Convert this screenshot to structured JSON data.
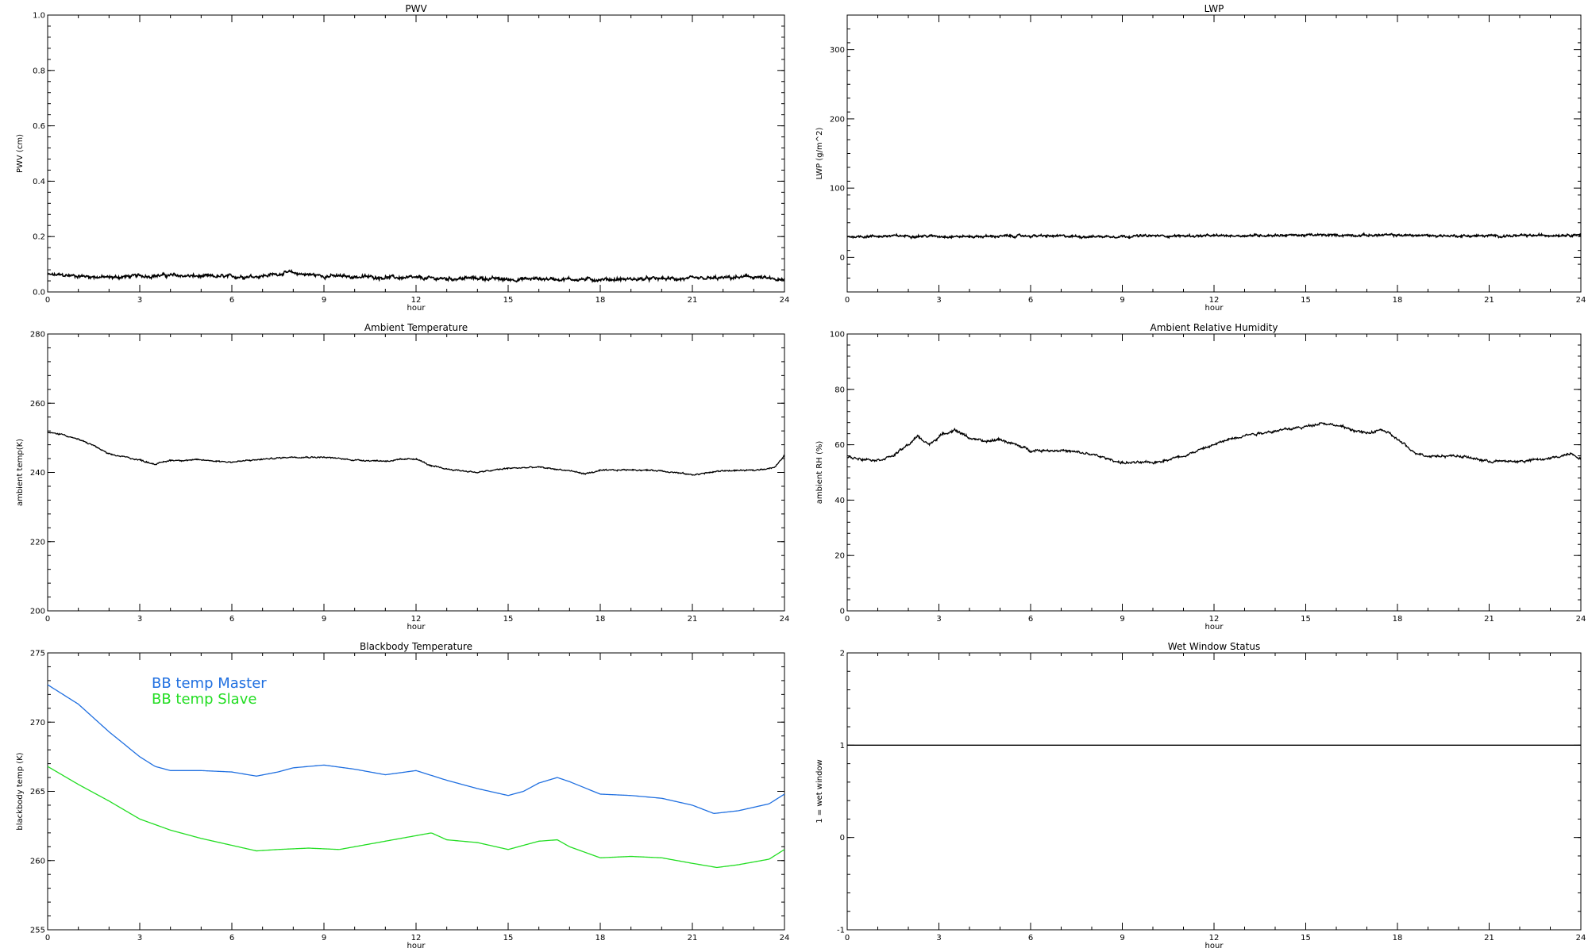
{
  "chart_data": [
    {
      "type": "line",
      "title": "PWV",
      "xlabel": "hour",
      "ylabel": "PWV (cm)",
      "xlim": [
        0,
        24
      ],
      "ylim": [
        0,
        1.0
      ],
      "xticks": [
        0,
        3,
        6,
        9,
        12,
        15,
        18,
        21,
        24
      ],
      "yticks": [
        "0.0",
        "0.2",
        "0.4",
        "0.6",
        "0.8",
        "1.0"
      ],
      "noise": 0.006,
      "series": [
        {
          "color": "#000000",
          "x": [
            0,
            1,
            2,
            3,
            4,
            5,
            6,
            7,
            7.8,
            9,
            10,
            11,
            12,
            13,
            14,
            15,
            16,
            17,
            18,
            19,
            20,
            21,
            22,
            23,
            24
          ],
          "y": [
            0.062,
            0.058,
            0.052,
            0.058,
            0.06,
            0.056,
            0.055,
            0.058,
            0.07,
            0.058,
            0.055,
            0.053,
            0.05,
            0.048,
            0.05,
            0.045,
            0.048,
            0.046,
            0.045,
            0.046,
            0.048,
            0.047,
            0.05,
            0.055,
            0.04
          ]
        }
      ]
    },
    {
      "type": "line",
      "title": "LWP",
      "xlabel": "hour",
      "ylabel": "LWP (g/m^2)",
      "xlim": [
        0,
        24
      ],
      "ylim": [
        -50,
        350
      ],
      "xticks": [
        0,
        3,
        6,
        9,
        12,
        15,
        18,
        21,
        24
      ],
      "yticks": [
        "0",
        "100",
        "200",
        "300"
      ],
      "noise": 1.6,
      "series": [
        {
          "color": "#000000",
          "x": [
            0,
            2,
            4,
            6,
            8,
            10,
            12,
            14,
            16,
            18,
            20,
            22,
            24
          ],
          "y": [
            30,
            31,
            30,
            31,
            30,
            31,
            31,
            32,
            32,
            32,
            31,
            31,
            33
          ]
        }
      ]
    },
    {
      "type": "line",
      "title": "Ambient Temperature",
      "xlabel": "hour",
      "ylabel": "ambient temp(K)",
      "xlim": [
        0,
        24
      ],
      "ylim": [
        200,
        280
      ],
      "xticks": [
        0,
        3,
        6,
        9,
        12,
        15,
        18,
        21,
        24
      ],
      "yticks": [
        "200",
        "220",
        "240",
        "260",
        "280"
      ],
      "noise": 0.2,
      "series": [
        {
          "color": "#000000",
          "x": [
            0,
            0.5,
            1,
            1.5,
            2,
            2.5,
            3,
            3.5,
            4,
            5,
            6,
            7,
            8,
            9,
            10,
            11,
            12,
            12.5,
            13,
            14,
            15,
            16,
            17,
            17.5,
            18,
            19,
            20,
            21,
            22,
            23,
            23.7,
            24
          ],
          "y": [
            251.5,
            251.0,
            249.5,
            247.8,
            245.2,
            244.5,
            243.6,
            242.4,
            243.5,
            243.6,
            243.0,
            243.8,
            244.5,
            244.4,
            243.6,
            243.3,
            244.0,
            241.8,
            241.0,
            240.0,
            241.2,
            241.5,
            240.5,
            239.6,
            240.5,
            240.8,
            240.5,
            239.3,
            240.5,
            240.6,
            241.5,
            245.0
          ]
        }
      ]
    },
    {
      "type": "line",
      "title": "Ambient Relative Humidity",
      "xlabel": "hour",
      "ylabel": "ambient RH (%)",
      "xlim": [
        0,
        24
      ],
      "ylim": [
        0,
        100
      ],
      "xticks": [
        0,
        3,
        6,
        9,
        12,
        15,
        18,
        21,
        24
      ],
      "yticks": [
        "0",
        "20",
        "40",
        "60",
        "80",
        "100"
      ],
      "noise": 0.45,
      "series": [
        {
          "color": "#000000",
          "x": [
            0,
            0.5,
            1,
            1.5,
            2,
            2.3,
            2.7,
            3,
            3.5,
            4,
            4.5,
            5,
            6,
            7,
            8,
            9,
            10,
            11,
            11.5,
            12,
            12.5,
            13,
            14,
            15,
            15.5,
            16,
            17,
            17.5,
            18,
            18.5,
            19,
            20,
            21,
            22,
            23,
            23.7,
            24
          ],
          "y": [
            55.5,
            55.0,
            54.5,
            56.0,
            60.0,
            63.0,
            60.0,
            63.0,
            65.5,
            62.5,
            61.0,
            62.0,
            58.0,
            58.0,
            56.5,
            53.5,
            53.5,
            56.0,
            58.0,
            60.0,
            62.0,
            63.5,
            65.0,
            66.5,
            68.0,
            67.0,
            64.0,
            65.5,
            62.0,
            57.5,
            56.0,
            56.0,
            54.0,
            54.0,
            55.0,
            57.0,
            55.0
          ]
        }
      ]
    },
    {
      "type": "line",
      "title": "Blackbody Temperature",
      "xlabel": "hour",
      "ylabel": "blackbody temp (K)",
      "xlim": [
        0,
        24
      ],
      "ylim": [
        255,
        275
      ],
      "xticks": [
        0,
        3,
        6,
        9,
        12,
        15,
        18,
        21,
        24
      ],
      "yticks": [
        "255",
        "260",
        "265",
        "270",
        "275"
      ],
      "noise": 0,
      "legend": [
        "BB temp Master",
        "BB temp Slave"
      ],
      "series": [
        {
          "name": "BB temp Master",
          "color": "#1f6fe0",
          "x": [
            0,
            1,
            2,
            3,
            3.5,
            4,
            5,
            6,
            6.8,
            7.5,
            8,
            9,
            10,
            11,
            12,
            13,
            14,
            15,
            15.5,
            16,
            16.6,
            17,
            18,
            19,
            20,
            21,
            21.7,
            22.5,
            23.5,
            24
          ],
          "y": [
            272.7,
            271.3,
            269.3,
            267.5,
            266.8,
            266.5,
            266.5,
            266.4,
            266.1,
            266.4,
            266.7,
            266.9,
            266.6,
            266.2,
            266.5,
            265.8,
            265.2,
            264.7,
            265.0,
            265.6,
            266.0,
            265.7,
            264.8,
            264.7,
            264.5,
            264.0,
            263.4,
            263.6,
            264.1,
            264.8
          ]
        },
        {
          "name": "BB temp Slave",
          "color": "#22dd22",
          "x": [
            0,
            1,
            2,
            3,
            4,
            5,
            6,
            6.8,
            7.5,
            8.5,
            9.5,
            10.5,
            11.5,
            12.5,
            13,
            14,
            15,
            16,
            16.6,
            17,
            18,
            19,
            20,
            21,
            21.8,
            22.5,
            23.5,
            24
          ],
          "y": [
            266.8,
            265.5,
            264.3,
            263.0,
            262.2,
            261.6,
            261.1,
            260.7,
            260.8,
            260.9,
            260.8,
            261.2,
            261.6,
            262.0,
            261.5,
            261.3,
            260.8,
            261.4,
            261.5,
            261.0,
            260.2,
            260.3,
            260.2,
            259.8,
            259.5,
            259.7,
            260.1,
            260.8
          ]
        }
      ]
    },
    {
      "type": "line",
      "title": "Wet Window Status",
      "xlabel": "hour",
      "ylabel": "1 = wet window",
      "xlim": [
        0,
        24
      ],
      "ylim": [
        -1,
        2
      ],
      "xticks": [
        0,
        3,
        6,
        9,
        12,
        15,
        18,
        21,
        24
      ],
      "yticks": [
        "-1",
        "0",
        "1",
        "2"
      ],
      "noise": 0,
      "series": [
        {
          "color": "#000000",
          "x": [
            0,
            24
          ],
          "y": [
            1,
            1
          ]
        }
      ]
    }
  ]
}
